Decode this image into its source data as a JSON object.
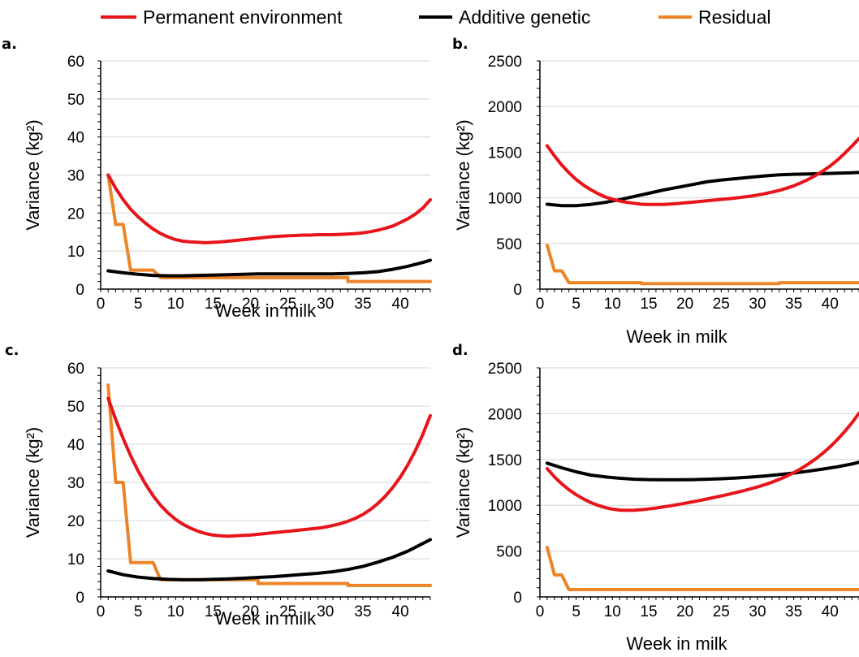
{
  "legend": [
    {
      "label": "Permanent environment",
      "color": "#e8141b"
    },
    {
      "label": "Additive genetic",
      "color": "#000000"
    },
    {
      "label": "Residual",
      "color": "#ec8527"
    }
  ],
  "chart_data": [
    {
      "type": "line",
      "panel": "a.",
      "xlabel": "Week in milk",
      "ylabel": "Variance (kg²)",
      "xlim": [
        0,
        44
      ],
      "ylim": [
        0,
        60
      ],
      "xticks": [
        0,
        5,
        10,
        15,
        20,
        25,
        30,
        35,
        40
      ],
      "yticks": [
        0,
        10,
        20,
        30,
        40,
        50,
        60
      ],
      "grid": true,
      "series": [
        {
          "name": "Permanent environment",
          "color": "#e8141b",
          "x": [
            1,
            2,
            3,
            4,
            5,
            6,
            7,
            8,
            9,
            10,
            11,
            12,
            13,
            14,
            15,
            16,
            17,
            18,
            19,
            20,
            21,
            22,
            23,
            24,
            25,
            26,
            27,
            28,
            29,
            30,
            31,
            32,
            33,
            34,
            35,
            36,
            37,
            38,
            39,
            40,
            41,
            42,
            43,
            44
          ],
          "y": [
            30,
            26.5,
            23.5,
            21,
            19,
            17.3,
            15.8,
            14.6,
            13.7,
            13,
            12.6,
            12.4,
            12.3,
            12.2,
            12.3,
            12.4,
            12.6,
            12.8,
            13,
            13.2,
            13.4,
            13.6,
            13.8,
            13.9,
            14,
            14.1,
            14.2,
            14.2,
            14.3,
            14.3,
            14.3,
            14.4,
            14.5,
            14.6,
            14.8,
            15.1,
            15.5,
            16,
            16.6,
            17.5,
            18.5,
            19.7,
            21.3,
            23.5
          ]
        },
        {
          "name": "Additive genetic",
          "color": "#000000",
          "x": [
            1,
            3,
            5,
            7,
            9,
            11,
            13,
            15,
            17,
            19,
            21,
            23,
            25,
            27,
            29,
            31,
            33,
            35,
            37,
            39,
            41,
            43,
            44
          ],
          "y": [
            4.8,
            4.3,
            3.9,
            3.6,
            3.5,
            3.5,
            3.6,
            3.7,
            3.8,
            3.9,
            4,
            4,
            4,
            4,
            4,
            4,
            4.1,
            4.3,
            4.6,
            5.2,
            6,
            7,
            7.6
          ]
        },
        {
          "name": "Residual",
          "color": "#ec8527",
          "x": [
            1,
            2,
            2,
            3,
            3,
            4,
            4,
            7,
            7,
            8,
            8,
            21,
            21,
            33,
            33,
            44
          ],
          "y": [
            30,
            17,
            17,
            17,
            17,
            5,
            5,
            5,
            5,
            3,
            3,
            3,
            3,
            3,
            2,
            2
          ]
        }
      ]
    },
    {
      "type": "line",
      "panel": "b.",
      "xlabel": "Week in milk",
      "ylabel": "Variance (kg²)",
      "xlim": [
        0,
        44
      ],
      "ylim": [
        0,
        2500
      ],
      "xticks": [
        0,
        5,
        10,
        15,
        20,
        25,
        30,
        35,
        40
      ],
      "yticks": [
        0,
        500,
        1000,
        1500,
        2000,
        2500
      ],
      "grid": true,
      "series": [
        {
          "name": "Permanent environment",
          "color": "#e8141b",
          "x": [
            1,
            2,
            3,
            4,
            5,
            6,
            7,
            8,
            9,
            10,
            11,
            12,
            13,
            14,
            15,
            16,
            17,
            18,
            19,
            20,
            21,
            22,
            23,
            24,
            25,
            26,
            27,
            28,
            29,
            30,
            31,
            32,
            33,
            34,
            35,
            36,
            37,
            38,
            39,
            40,
            41,
            42,
            43,
            44
          ],
          "y": [
            1570,
            1460,
            1360,
            1275,
            1200,
            1140,
            1090,
            1045,
            1010,
            985,
            965,
            950,
            940,
            930,
            928,
            927,
            928,
            932,
            938,
            945,
            952,
            960,
            968,
            975,
            983,
            990,
            998,
            1008,
            1018,
            1030,
            1045,
            1062,
            1082,
            1105,
            1132,
            1165,
            1202,
            1245,
            1293,
            1348,
            1412,
            1485,
            1565,
            1650
          ]
        },
        {
          "name": "Additive genetic",
          "color": "#000000",
          "x": [
            1,
            3,
            5,
            7,
            9,
            11,
            13,
            15,
            17,
            19,
            21,
            23,
            25,
            27,
            29,
            31,
            33,
            35,
            37,
            39,
            41,
            43,
            44
          ],
          "y": [
            930,
            915,
            915,
            928,
            950,
            980,
            1015,
            1050,
            1085,
            1115,
            1145,
            1175,
            1195,
            1210,
            1225,
            1240,
            1252,
            1258,
            1262,
            1265,
            1270,
            1275,
            1278
          ]
        },
        {
          "name": "Residual",
          "color": "#ec8527",
          "x": [
            1,
            2,
            2,
            3,
            3,
            4,
            4,
            14,
            14,
            33,
            33,
            44
          ],
          "y": [
            480,
            200,
            200,
            200,
            200,
            70,
            70,
            70,
            60,
            60,
            70,
            70
          ]
        }
      ]
    },
    {
      "type": "line",
      "panel": "c.",
      "xlabel": "Week in milk",
      "ylabel": "Variance (kg²)",
      "xlim": [
        0,
        44
      ],
      "ylim": [
        0,
        60
      ],
      "xticks": [
        0,
        5,
        10,
        15,
        20,
        25,
        30,
        35,
        40
      ],
      "yticks": [
        0,
        10,
        20,
        30,
        40,
        50,
        60
      ],
      "grid": true,
      "series": [
        {
          "name": "Permanent environment",
          "color": "#e8141b",
          "x": [
            1,
            2,
            3,
            4,
            5,
            6,
            7,
            8,
            9,
            10,
            11,
            12,
            13,
            14,
            15,
            16,
            17,
            18,
            19,
            20,
            21,
            22,
            23,
            24,
            25,
            26,
            27,
            28,
            29,
            30,
            31,
            32,
            33,
            34,
            35,
            36,
            37,
            38,
            39,
            40,
            41,
            42,
            43,
            44
          ],
          "y": [
            52,
            46.5,
            41.5,
            37,
            33,
            29.5,
            26.5,
            24,
            22,
            20.3,
            19,
            18,
            17.2,
            16.6,
            16.2,
            16,
            15.9,
            16,
            16.1,
            16.2,
            16.4,
            16.6,
            16.8,
            17,
            17.2,
            17.4,
            17.6,
            17.8,
            18,
            18.3,
            18.7,
            19.2,
            19.8,
            20.6,
            21.6,
            22.9,
            24.5,
            26.4,
            28.7,
            31.4,
            34.6,
            38.3,
            42.6,
            47.5
          ]
        },
        {
          "name": "Additive genetic",
          "color": "#000000",
          "x": [
            1,
            3,
            5,
            7,
            9,
            11,
            13,
            15,
            17,
            19,
            21,
            23,
            25,
            27,
            29,
            31,
            33,
            35,
            37,
            39,
            41,
            43,
            44
          ],
          "y": [
            6.8,
            5.8,
            5.2,
            4.8,
            4.6,
            4.5,
            4.5,
            4.6,
            4.7,
            4.9,
            5.1,
            5.3,
            5.6,
            5.9,
            6.2,
            6.6,
            7.2,
            8,
            9.1,
            10.4,
            12,
            14,
            15
          ]
        },
        {
          "name": "Residual",
          "color": "#ec8527",
          "x": [
            1,
            2,
            2,
            3,
            3,
            4,
            4,
            7,
            7,
            8,
            8,
            21,
            21,
            33,
            33,
            44
          ],
          "y": [
            55.5,
            30,
            30,
            30,
            30,
            9,
            9,
            9,
            9,
            4.5,
            4.5,
            4.5,
            3.5,
            3.5,
            3,
            3
          ]
        }
      ]
    },
    {
      "type": "line",
      "panel": "d.",
      "xlabel": "Week in milk",
      "ylabel": "Variance (kg²)",
      "xlim": [
        0,
        44
      ],
      "ylim": [
        0,
        2500
      ],
      "xticks": [
        0,
        5,
        10,
        15,
        20,
        25,
        30,
        35,
        40
      ],
      "yticks": [
        0,
        500,
        1000,
        1500,
        2000,
        2500
      ],
      "grid": true,
      "series": [
        {
          "name": "Permanent environment",
          "color": "#e8141b",
          "x": [
            1,
            2,
            3,
            4,
            5,
            6,
            7,
            8,
            9,
            10,
            11,
            12,
            13,
            14,
            15,
            16,
            17,
            18,
            19,
            20,
            21,
            22,
            23,
            24,
            25,
            26,
            27,
            28,
            29,
            30,
            31,
            32,
            33,
            34,
            35,
            36,
            37,
            38,
            39,
            40,
            41,
            42,
            43,
            44
          ],
          "y": [
            1400,
            1310,
            1235,
            1170,
            1115,
            1070,
            1030,
            1000,
            975,
            958,
            948,
            945,
            947,
            952,
            960,
            970,
            982,
            995,
            1008,
            1022,
            1037,
            1052,
            1068,
            1085,
            1102,
            1120,
            1138,
            1158,
            1178,
            1200,
            1225,
            1252,
            1283,
            1317,
            1356,
            1400,
            1450,
            1505,
            1567,
            1637,
            1715,
            1802,
            1898,
            2005
          ]
        },
        {
          "name": "Additive genetic",
          "color": "#000000",
          "x": [
            1,
            3,
            5,
            7,
            9,
            11,
            13,
            15,
            17,
            19,
            21,
            23,
            25,
            27,
            29,
            31,
            33,
            35,
            37,
            39,
            41,
            43,
            44
          ],
          "y": [
            1460,
            1410,
            1365,
            1330,
            1310,
            1295,
            1285,
            1280,
            1278,
            1278,
            1280,
            1285,
            1290,
            1298,
            1308,
            1320,
            1335,
            1352,
            1372,
            1395,
            1420,
            1450,
            1470
          ]
        },
        {
          "name": "Residual",
          "color": "#ec8527",
          "x": [
            1,
            2,
            2,
            3,
            3,
            4,
            4,
            44
          ],
          "y": [
            540,
            240,
            240,
            240,
            240,
            80,
            80,
            80
          ]
        }
      ]
    }
  ]
}
